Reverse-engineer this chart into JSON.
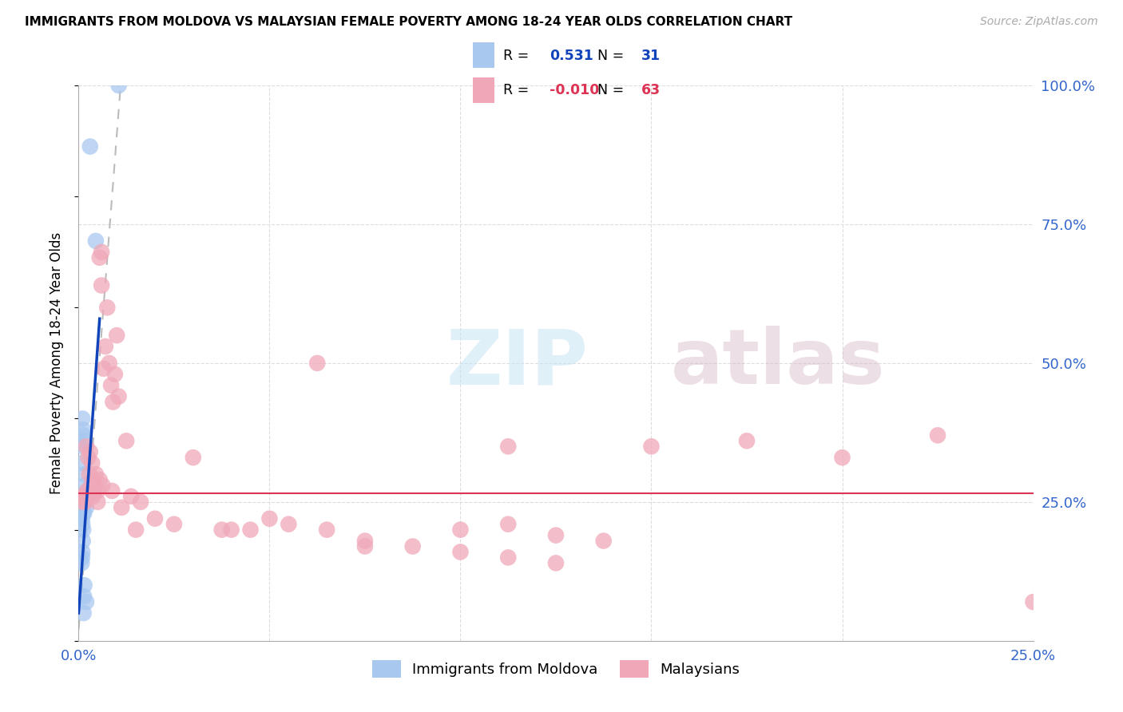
{
  "title": "IMMIGRANTS FROM MOLDOVA VS MALAYSIAN FEMALE POVERTY AMONG 18-24 YEAR OLDS CORRELATION CHART",
  "source": "Source: ZipAtlas.com",
  "ylabel": "Female Poverty Among 18-24 Year Olds",
  "xlim": [
    0.0,
    25.0
  ],
  "ylim": [
    0.0,
    100.0
  ],
  "legend_r_blue": "0.531",
  "legend_n_blue": "31",
  "legend_r_pink": "-0.010",
  "legend_n_pink": "63",
  "legend_label_blue": "Immigrants from Moldova",
  "legend_label_pink": "Malaysians",
  "blue_color": "#a8c8f0",
  "pink_color": "#f0a8b8",
  "trend_blue_color": "#1144bb",
  "trend_pink_color": "#dd3355",
  "trend_gray_color": "#bbbbbb",
  "watermark_zip": "ZIP",
  "watermark_atlas": "atlas",
  "blue_x": [
    0.3,
    0.45,
    1.05,
    0.1,
    0.12,
    0.13,
    0.08,
    0.11,
    0.14,
    0.15,
    0.16,
    0.17,
    0.18,
    0.2,
    0.09,
    0.1,
    0.12,
    0.11,
    0.1,
    0.09,
    0.08,
    0.13,
    0.15,
    0.14,
    0.2,
    0.25,
    0.3,
    0.12,
    0.14,
    0.13,
    0.4
  ],
  "blue_y": [
    89.0,
    72.0,
    100.0,
    40.0,
    38.0,
    37.0,
    32.0,
    35.0,
    36.0,
    30.0,
    28.0,
    25.0,
    26.0,
    24.0,
    22.0,
    21.0,
    20.0,
    18.0,
    16.0,
    15.0,
    14.0,
    23.0,
    10.0,
    8.0,
    7.0,
    27.0,
    26.0,
    25.0,
    23.0,
    5.0,
    27.0
  ],
  "pink_x": [
    0.1,
    0.12,
    0.55,
    0.6,
    0.75,
    1.0,
    0.8,
    0.6,
    0.95,
    1.05,
    0.7,
    0.65,
    0.85,
    0.9,
    0.2,
    0.25,
    0.3,
    0.35,
    0.4,
    0.45,
    0.5,
    0.55,
    1.25,
    3.0,
    6.25,
    11.25,
    15.0,
    17.5,
    20.0,
    22.5,
    1.5,
    2.0,
    2.5,
    3.75,
    5.0,
    5.5,
    6.5,
    7.5,
    0.375,
    0.5,
    0.625,
    0.875,
    1.125,
    1.375,
    1.625,
    10.0,
    11.25,
    12.5,
    13.75,
    25.0,
    7.5,
    8.75,
    10.0,
    11.25,
    12.5,
    4.0,
    4.5,
    0.15,
    0.18,
    0.22,
    0.28,
    0.33,
    0.38
  ],
  "pink_y": [
    25.0,
    26.0,
    69.0,
    70.0,
    60.0,
    55.0,
    50.0,
    64.0,
    48.0,
    44.0,
    53.0,
    49.0,
    46.0,
    43.0,
    35.0,
    33.0,
    34.0,
    32.0,
    28.0,
    30.0,
    27.0,
    29.0,
    36.0,
    33.0,
    50.0,
    35.0,
    35.0,
    36.0,
    33.0,
    37.0,
    20.0,
    22.0,
    21.0,
    20.0,
    22.0,
    21.0,
    20.0,
    18.0,
    26.0,
    25.0,
    28.0,
    27.0,
    24.0,
    26.0,
    25.0,
    20.0,
    21.0,
    19.0,
    18.0,
    7.0,
    17.0,
    17.0,
    16.0,
    15.0,
    14.0,
    20.0,
    20.0,
    26.0,
    25.0,
    27.0,
    30.0,
    28.0,
    29.0
  ],
  "blue_trend_x0": 0.0,
  "blue_trend_y0": 5.0,
  "blue_trend_x1": 0.55,
  "blue_trend_y1": 58.0,
  "gray_trend_x0": 0.0,
  "gray_trend_y0": 2.0,
  "gray_trend_x1": 1.1,
  "gray_trend_y1": 100.0,
  "pink_trend_y": 26.5
}
